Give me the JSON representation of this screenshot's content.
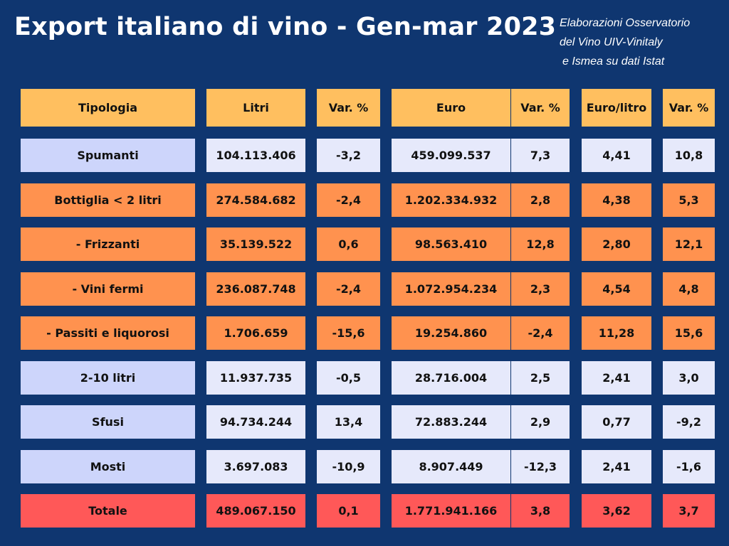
{
  "title": "Export italiano di vino - Gen-mar 2023",
  "source": [
    "Elaborazioni Osservatorio",
    "del Vino UIV-Vinitaly",
    "e Ismea su dati Istat"
  ],
  "colors": {
    "background": "#0f3670",
    "header": "#ffbf5f",
    "lavender_label": "#cdd5fb",
    "lavender_value": "#e6e9fb",
    "orange": "#ff924f",
    "total": "#ff5858"
  },
  "table": {
    "headers": [
      "Tipologia",
      "Litri",
      "Var. %",
      "Euro",
      "Var. %",
      "Euro/litro",
      "Var. %"
    ],
    "rows": [
      {
        "style": "lavender",
        "cells": [
          "Spumanti",
          "104.113.406",
          "-3,2",
          "459.099.537",
          "7,3",
          "4,41",
          "10,8"
        ]
      },
      {
        "style": "orange",
        "cells": [
          "Bottiglia < 2 litri",
          "274.584.682",
          "-2,4",
          "1.202.334.932",
          "2,8",
          "4,38",
          "5,3"
        ]
      },
      {
        "style": "orange",
        "cells": [
          "- Frizzanti",
          "35.139.522",
          "0,6",
          "98.563.410",
          "12,8",
          "2,80",
          "12,1"
        ]
      },
      {
        "style": "orange",
        "cells": [
          "- Vini fermi",
          "236.087.748",
          "-2,4",
          "1.072.954.234",
          "2,3",
          "4,54",
          "4,8"
        ]
      },
      {
        "style": "orange",
        "cells": [
          "- Passiti e liquorosi",
          "1.706.659",
          "-15,6",
          "19.254.860",
          "-2,4",
          "11,28",
          "15,6"
        ]
      },
      {
        "style": "lavender",
        "cells": [
          "2-10 litri",
          "11.937.735",
          "-0,5",
          "28.716.004",
          "2,5",
          "2,41",
          "3,0"
        ]
      },
      {
        "style": "lavender",
        "cells": [
          "Sfusi",
          "94.734.244",
          "13,4",
          "72.883.244",
          "2,9",
          "0,77",
          "-9,2"
        ]
      },
      {
        "style": "lavender",
        "cells": [
          "Mosti",
          "3.697.083",
          "-10,9",
          "8.907.449",
          "-12,3",
          "2,41",
          "-1,6"
        ]
      },
      {
        "style": "total",
        "cells": [
          "Totale",
          "489.067.150",
          "0,1",
          "1.771.941.166",
          "3,8",
          "3,62",
          "3,7"
        ]
      }
    ]
  }
}
